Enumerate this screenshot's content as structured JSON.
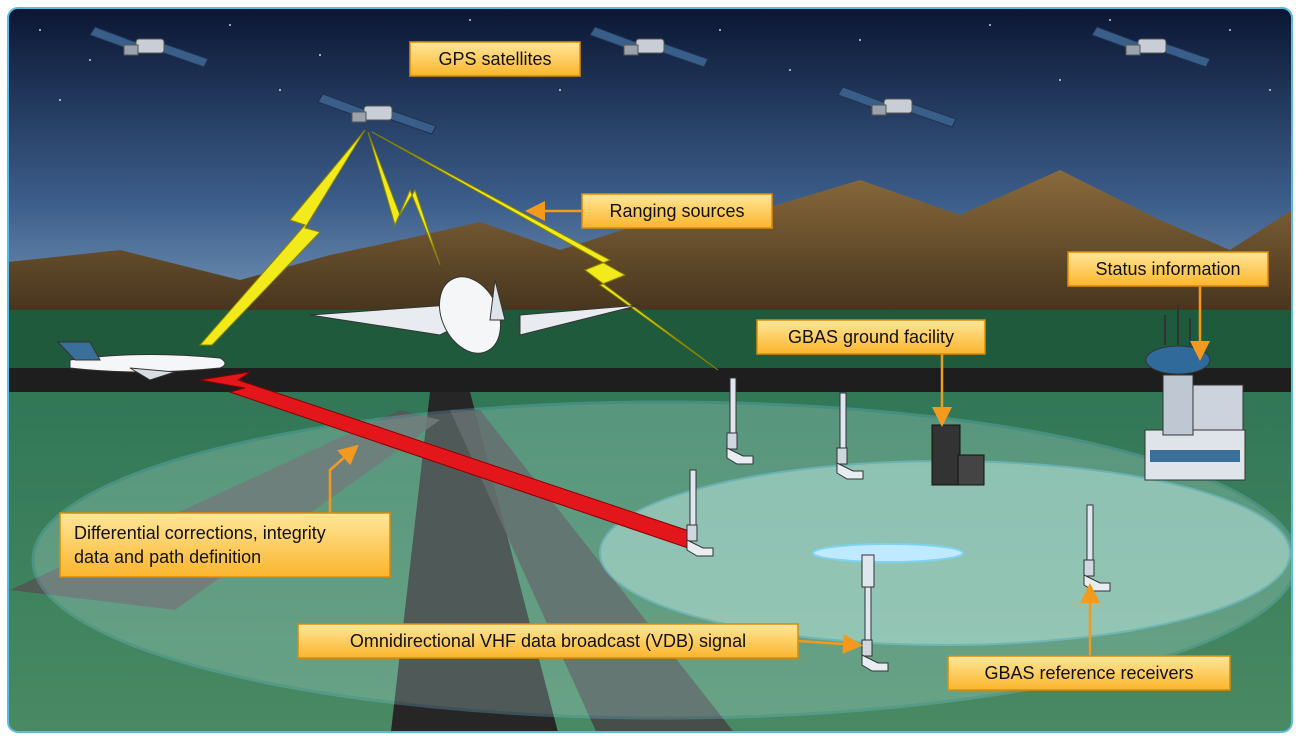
{
  "callouts": {
    "gps_satellites": "GPS satellites",
    "ranging_sources": "Ranging sources",
    "status_information": "Status information",
    "gbas_ground_facility": "GBAS ground facility",
    "differential_corrections": [
      "Differential corrections, integrity",
      "data and path definition"
    ],
    "vdb_signal": "Omnidirectional VHF data broadcast (VDB) signal",
    "gbas_reference_receivers": "GBAS reference receivers"
  }
}
